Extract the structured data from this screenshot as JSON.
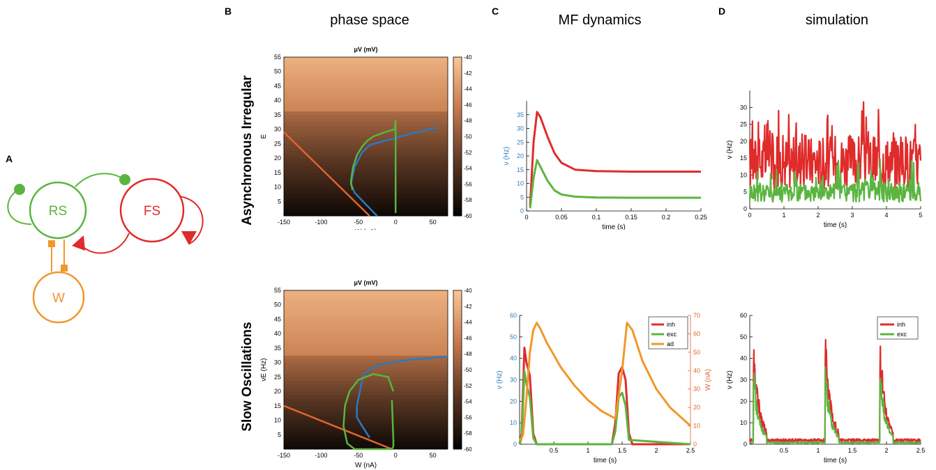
{
  "panels": {
    "A": "A",
    "B": "B",
    "C": "C",
    "D": "D"
  },
  "titles": {
    "phase": "phase space",
    "mf": "MF dynamics",
    "sim": "simulation"
  },
  "rows": {
    "ai": "Asynchronous Irregular",
    "so": "Slow Oscillations"
  },
  "diagram": {
    "rs": "RS",
    "fs": "FS",
    "w": "W"
  },
  "colors": {
    "exc": "#5ab540",
    "inh": "#e02b2b",
    "ad": "#f0982a",
    "nullW": "#e0642c",
    "nullE": "#2a79c0"
  },
  "heatmap": {
    "title": "μ_V (mV)",
    "colorbar_ticks": [
      "-40",
      "-42",
      "-44",
      "-46",
      "-48",
      "-50",
      "-52",
      "-54",
      "-56",
      "-58",
      "-60"
    ],
    "ai": {
      "xlabel": "W (nA)",
      "ylabel": "E"
    },
    "so": {
      "xlabel": "W (nA)",
      "ylabel": "ν_E (Hz)"
    }
  },
  "chart_data": [
    {
      "type": "line",
      "id": "B-top",
      "title": "μV (mV)",
      "xlabel": "W (nA)",
      "ylabel": "E",
      "xlim": [
        -150,
        70
      ],
      "ylim": [
        0,
        55
      ],
      "xticks": [
        -150,
        -100,
        -50,
        0,
        50
      ],
      "yticks": [
        5,
        10,
        15,
        20,
        25,
        30,
        35,
        40,
        45,
        50,
        55
      ],
      "series": [
        {
          "color": "#e0642c",
          "x": [
            -150,
            -35
          ],
          "y": [
            29,
            0
          ]
        },
        {
          "color": "#2a79c0",
          "x": [
            -25,
            -40,
            -55,
            -60,
            -55,
            -45,
            -35,
            -15,
            0,
            20,
            55
          ],
          "y": [
            0,
            4,
            8,
            11,
            17,
            22,
            24.5,
            26,
            27,
            28.5,
            30.5
          ]
        },
        {
          "color": "#5ab540",
          "x": [
            -58,
            -60,
            -57,
            -52,
            -45,
            -38,
            -30,
            -20,
            -8,
            -1,
            0,
            0,
            0,
            0
          ],
          "y": [
            9,
            12,
            17,
            21,
            24,
            26,
            27.5,
            28.5,
            29.5,
            30,
            33,
            22,
            10,
            1
          ]
        }
      ]
    },
    {
      "type": "line",
      "id": "B-bottom",
      "title": "μV (mV)",
      "xlabel": "W (nA)",
      "ylabel": "νE (Hz)",
      "xlim": [
        -150,
        70
      ],
      "ylim": [
        0,
        55
      ],
      "xticks": [
        -150,
        -100,
        -50,
        0,
        50
      ],
      "yticks": [
        5,
        10,
        15,
        20,
        25,
        30,
        35,
        40,
        45,
        50,
        55
      ],
      "series": [
        {
          "color": "#e0642c",
          "x": [
            -150,
            -5
          ],
          "y": [
            15,
            0
          ]
        },
        {
          "color": "#2a79c0",
          "x": [
            -35,
            -45,
            -52,
            -52,
            -48,
            -45,
            -42,
            -35,
            -25,
            -5,
            20,
            70
          ],
          "y": [
            4,
            8,
            11,
            15,
            20,
            24,
            26,
            27.5,
            29,
            30,
            31,
            32
          ]
        },
        {
          "color": "#5ab540",
          "x": [
            -5,
            -3,
            -3,
            -5,
            -8,
            -15,
            -25,
            -40,
            -55,
            -65,
            -70,
            -68,
            -62,
            -50,
            -30,
            -10,
            -3
          ],
          "y": [
            17,
            3,
            1,
            0,
            0,
            0,
            0,
            0,
            0,
            2,
            8,
            15,
            20,
            24,
            26,
            25,
            20
          ]
        }
      ]
    },
    {
      "type": "line",
      "id": "C-top",
      "xlabel": "time (s)",
      "ylabel": "ν (Hz)",
      "xlim": [
        0,
        0.25
      ],
      "ylim": [
        0,
        40
      ],
      "xticks": [
        0,
        0.05,
        0.1,
        0.15,
        0.2,
        0.25
      ],
      "yticks": [
        0,
        5,
        10,
        15,
        20,
        25,
        30,
        35
      ],
      "series": [
        {
          "name": "inh",
          "color": "#e02b2b",
          "x": [
            0.005,
            0.01,
            0.015,
            0.02,
            0.03,
            0.04,
            0.05,
            0.07,
            0.1,
            0.15,
            0.25
          ],
          "y": [
            2,
            25,
            36,
            34,
            27,
            21,
            17.5,
            15,
            14.5,
            14.3,
            14.3
          ]
        },
        {
          "name": "exc",
          "color": "#5ab540",
          "x": [
            0.005,
            0.01,
            0.015,
            0.02,
            0.03,
            0.04,
            0.05,
            0.07,
            0.1,
            0.15,
            0.25
          ],
          "y": [
            1,
            12,
            18.5,
            16,
            11,
            7.5,
            6,
            5.2,
            4.9,
            4.8,
            4.8
          ]
        }
      ]
    },
    {
      "type": "line",
      "id": "C-bottom",
      "xlabel": "time (s)",
      "ylabel": "ν (Hz)",
      "y2label": "W (nA)",
      "xlim": [
        0,
        2.5
      ],
      "ylim": [
        0,
        60
      ],
      "y2lim": [
        0,
        70
      ],
      "xticks": [
        0.5,
        1,
        1.5,
        2,
        2.5
      ],
      "yticks": [
        0,
        10,
        20,
        30,
        40,
        50,
        60
      ],
      "y2ticks": [
        0,
        10,
        20,
        30,
        40,
        50,
        60,
        70
      ],
      "legend": [
        "inh",
        "exc",
        "ad"
      ],
      "series": [
        {
          "name": "inh",
          "color": "#e02b2b",
          "x": [
            0,
            0.03,
            0.07,
            0.1,
            0.15,
            0.2,
            0.25,
            0.3,
            0.35,
            1.35,
            1.4,
            1.45,
            1.5,
            1.55,
            1.6,
            1.65,
            2.5
          ],
          "y": [
            0,
            5,
            45,
            38,
            32,
            5,
            0,
            0,
            0,
            0,
            10,
            33,
            36,
            30,
            5,
            0,
            0
          ]
        },
        {
          "name": "exc",
          "color": "#5ab540",
          "x": [
            0,
            0.03,
            0.07,
            0.1,
            0.15,
            0.2,
            0.25,
            0.3,
            1.35,
            1.4,
            1.45,
            1.5,
            1.55,
            1.6,
            2.5
          ],
          "y": [
            0,
            3,
            34,
            28,
            22,
            3,
            0,
            0,
            0,
            6,
            22,
            24,
            18,
            2,
            0
          ]
        },
        {
          "name": "ad",
          "color": "#f0982a",
          "x": [
            0,
            0.05,
            0.1,
            0.15,
            0.2,
            0.25,
            0.3,
            0.4,
            0.6,
            0.8,
            1.0,
            1.2,
            1.4,
            1.5,
            1.57,
            1.65,
            1.8,
            2.0,
            2.2,
            2.5
          ],
          "y": [
            2,
            5,
            25,
            50,
            62,
            66,
            63,
            55,
            42,
            32,
            24,
            18,
            14,
            40,
            66,
            62,
            45,
            30,
            20,
            10
          ]
        }
      ]
    },
    {
      "type": "line",
      "id": "D-top",
      "xlabel": "time (s)",
      "ylabel": "ν (Hz)",
      "xlim": [
        0,
        5
      ],
      "ylim": [
        0,
        35
      ],
      "xticks": [
        0,
        1,
        2,
        3,
        4,
        5
      ],
      "yticks": [
        0,
        5,
        10,
        15,
        20,
        25,
        30
      ],
      "series": [
        {
          "name": "inh",
          "color": "#e02b2b",
          "mean": 14,
          "spread": 8,
          "max": 32
        },
        {
          "name": "exc",
          "color": "#5ab540",
          "mean": 5,
          "spread": 3,
          "max": 16
        }
      ]
    },
    {
      "type": "line",
      "id": "D-bottom",
      "xlabel": "time (s)",
      "ylabel": "ν (Hz)",
      "xlim": [
        0,
        2.5
      ],
      "ylim": [
        0,
        60
      ],
      "xticks": [
        0.5,
        1,
        1.5,
        2,
        2.5
      ],
      "yticks": [
        0,
        10,
        20,
        30,
        40,
        50,
        60
      ],
      "legend": [
        "inh",
        "exc"
      ],
      "bursts": [
        0.05,
        1.1,
        1.9
      ],
      "series": [
        {
          "name": "inh",
          "color": "#e02b2b",
          "peak": 55
        },
        {
          "name": "exc",
          "color": "#5ab540",
          "peak": 40
        }
      ]
    }
  ]
}
